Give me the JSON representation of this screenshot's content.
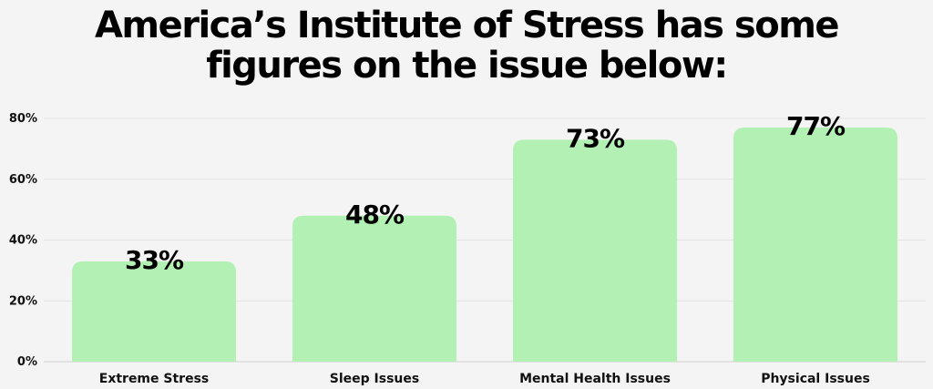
{
  "chart_data": {
    "type": "bar",
    "title_lines": [
      "America’s Institute of Stress has some",
      "figures on the issue below:"
    ],
    "categories": [
      "Extreme Stress",
      "Sleep Issues",
      "Mental Health Issues",
      "Physical Issues"
    ],
    "values": [
      33,
      48,
      73,
      77
    ],
    "data_labels": [
      "33%",
      "48%",
      "73%",
      "77%"
    ],
    "yticks": [
      0,
      20,
      40,
      60,
      80
    ],
    "ytick_labels": [
      "0%",
      "20%",
      "40%",
      "60%",
      "80%"
    ],
    "ylim": [
      0,
      80
    ],
    "grid": true,
    "bar_color": "#b3f0b3"
  }
}
